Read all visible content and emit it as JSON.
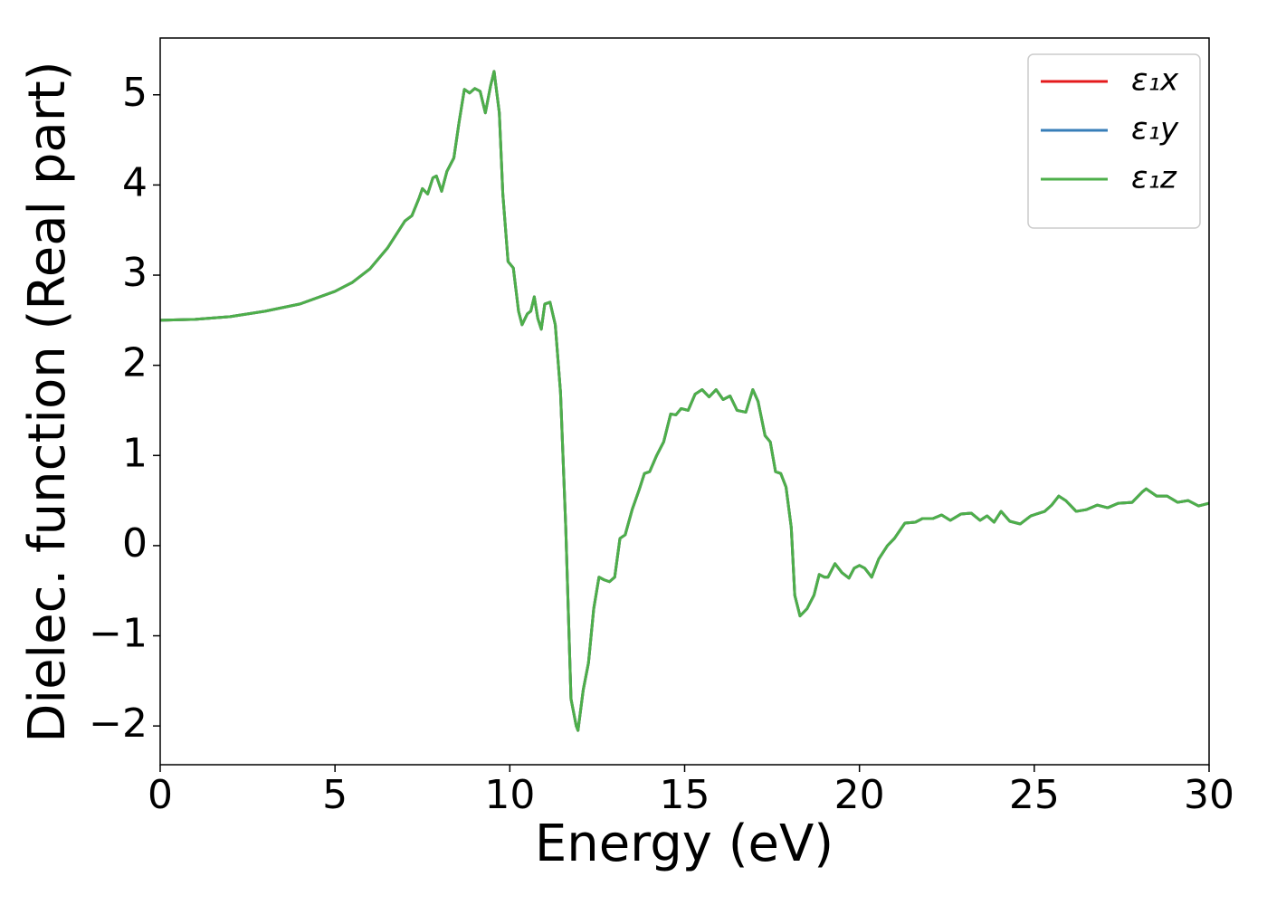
{
  "chart_data": {
    "type": "line",
    "xlabel": "Energy (eV)",
    "ylabel": "Dielec. function (Real part)",
    "x": [
      0,
      1,
      2,
      3,
      4,
      5,
      5.5,
      6,
      6.5,
      7,
      7.2,
      7.4,
      7.5,
      7.65,
      7.8,
      7.9,
      8.05,
      8.2,
      8.4,
      8.55,
      8.7,
      8.85,
      9.0,
      9.15,
      9.3,
      9.45,
      9.55,
      9.7,
      9.8,
      9.95,
      10.1,
      10.25,
      10.35,
      10.5,
      10.6,
      10.7,
      10.8,
      10.9,
      11.0,
      11.15,
      11.3,
      11.45,
      11.6,
      11.75,
      11.9,
      11.95,
      12.1,
      12.25,
      12.4,
      12.55,
      12.7,
      12.85,
      13.0,
      13.15,
      13.3,
      13.5,
      13.7,
      13.85,
      14.0,
      14.2,
      14.4,
      14.6,
      14.75,
      14.9,
      15.1,
      15.3,
      15.5,
      15.7,
      15.9,
      16.1,
      16.3,
      16.5,
      16.75,
      16.95,
      17.1,
      17.3,
      17.45,
      17.6,
      17.75,
      17.9,
      18.05,
      18.15,
      18.3,
      18.5,
      18.7,
      18.85,
      19.0,
      19.1,
      19.3,
      19.5,
      19.7,
      19.85,
      20.0,
      20.15,
      20.35,
      20.55,
      20.8,
      21.0,
      21.3,
      21.6,
      21.8,
      22.1,
      22.35,
      22.6,
      22.9,
      23.2,
      23.45,
      23.65,
      23.85,
      24.05,
      24.3,
      24.6,
      24.9,
      25.3,
      25.5,
      25.7,
      25.9,
      26.2,
      26.5,
      26.8,
      27.1,
      27.4,
      27.8,
      28.1,
      28.2,
      28.5,
      28.8,
      29.1,
      29.4,
      29.7,
      30.0
    ],
    "series": [
      {
        "name": "ε₁x",
        "color": "#e41a1c",
        "values": [
          2.5,
          2.51,
          2.54,
          2.6,
          2.68,
          2.82,
          2.92,
          3.07,
          3.3,
          3.6,
          3.66,
          3.85,
          3.96,
          3.9,
          4.08,
          4.1,
          3.93,
          4.15,
          4.3,
          4.7,
          5.06,
          5.02,
          5.07,
          5.04,
          4.8,
          5.1,
          5.26,
          4.8,
          3.9,
          3.15,
          3.08,
          2.6,
          2.45,
          2.57,
          2.6,
          2.76,
          2.52,
          2.4,
          2.68,
          2.7,
          2.45,
          1.7,
          0.2,
          -1.7,
          -2.0,
          -2.05,
          -1.6,
          -1.3,
          -0.7,
          -0.35,
          -0.38,
          -0.4,
          -0.35,
          0.08,
          0.12,
          0.4,
          0.62,
          0.8,
          0.82,
          1.0,
          1.15,
          1.46,
          1.45,
          1.52,
          1.5,
          1.68,
          1.73,
          1.65,
          1.73,
          1.62,
          1.66,
          1.5,
          1.48,
          1.73,
          1.6,
          1.22,
          1.15,
          0.82,
          0.8,
          0.65,
          0.2,
          -0.55,
          -0.78,
          -0.7,
          -0.55,
          -0.32,
          -0.35,
          -0.35,
          -0.2,
          -0.3,
          -0.36,
          -0.25,
          -0.22,
          -0.25,
          -0.35,
          -0.15,
          0.0,
          0.08,
          0.25,
          0.26,
          0.3,
          0.3,
          0.34,
          0.28,
          0.35,
          0.36,
          0.28,
          0.33,
          0.26,
          0.38,
          0.27,
          0.24,
          0.33,
          0.38,
          0.45,
          0.55,
          0.5,
          0.38,
          0.4,
          0.45,
          0.42,
          0.47,
          0.48,
          0.6,
          0.63,
          0.55,
          0.55,
          0.48,
          0.5,
          0.44,
          0.47
        ]
      },
      {
        "name": "ε₁y",
        "color": "#377eb8",
        "values": [
          2.5,
          2.51,
          2.54,
          2.6,
          2.68,
          2.82,
          2.92,
          3.07,
          3.3,
          3.6,
          3.66,
          3.85,
          3.96,
          3.9,
          4.08,
          4.1,
          3.93,
          4.15,
          4.3,
          4.7,
          5.06,
          5.02,
          5.07,
          5.04,
          4.8,
          5.1,
          5.26,
          4.8,
          3.9,
          3.15,
          3.08,
          2.6,
          2.45,
          2.57,
          2.6,
          2.76,
          2.52,
          2.4,
          2.68,
          2.7,
          2.45,
          1.7,
          0.2,
          -1.7,
          -2.0,
          -2.05,
          -1.6,
          -1.3,
          -0.7,
          -0.35,
          -0.38,
          -0.4,
          -0.35,
          0.08,
          0.12,
          0.4,
          0.62,
          0.8,
          0.82,
          1.0,
          1.15,
          1.46,
          1.45,
          1.52,
          1.5,
          1.68,
          1.73,
          1.65,
          1.73,
          1.62,
          1.66,
          1.5,
          1.48,
          1.73,
          1.6,
          1.22,
          1.15,
          0.82,
          0.8,
          0.65,
          0.2,
          -0.55,
          -0.78,
          -0.7,
          -0.55,
          -0.32,
          -0.35,
          -0.35,
          -0.2,
          -0.3,
          -0.36,
          -0.25,
          -0.22,
          -0.25,
          -0.35,
          -0.15,
          0.0,
          0.08,
          0.25,
          0.26,
          0.3,
          0.3,
          0.34,
          0.28,
          0.35,
          0.36,
          0.28,
          0.33,
          0.26,
          0.38,
          0.27,
          0.24,
          0.33,
          0.38,
          0.45,
          0.55,
          0.5,
          0.38,
          0.4,
          0.45,
          0.42,
          0.47,
          0.48,
          0.6,
          0.63,
          0.55,
          0.55,
          0.48,
          0.5,
          0.44,
          0.47
        ]
      },
      {
        "name": "ε₁z",
        "color": "#4daf4a",
        "values": [
          2.5,
          2.51,
          2.54,
          2.6,
          2.68,
          2.82,
          2.92,
          3.07,
          3.3,
          3.6,
          3.66,
          3.85,
          3.96,
          3.9,
          4.08,
          4.1,
          3.93,
          4.15,
          4.3,
          4.7,
          5.06,
          5.02,
          5.07,
          5.04,
          4.8,
          5.1,
          5.26,
          4.8,
          3.9,
          3.15,
          3.08,
          2.6,
          2.45,
          2.57,
          2.6,
          2.76,
          2.52,
          2.4,
          2.68,
          2.7,
          2.45,
          1.7,
          0.2,
          -1.7,
          -2.0,
          -2.05,
          -1.6,
          -1.3,
          -0.7,
          -0.35,
          -0.38,
          -0.4,
          -0.35,
          0.08,
          0.12,
          0.4,
          0.62,
          0.8,
          0.82,
          1.0,
          1.15,
          1.46,
          1.45,
          1.52,
          1.5,
          1.68,
          1.73,
          1.65,
          1.73,
          1.62,
          1.66,
          1.5,
          1.48,
          1.73,
          1.6,
          1.22,
          1.15,
          0.82,
          0.8,
          0.65,
          0.2,
          -0.55,
          -0.78,
          -0.7,
          -0.55,
          -0.32,
          -0.35,
          -0.35,
          -0.2,
          -0.3,
          -0.36,
          -0.25,
          -0.22,
          -0.25,
          -0.35,
          -0.15,
          0.0,
          0.08,
          0.25,
          0.26,
          0.3,
          0.3,
          0.34,
          0.28,
          0.35,
          0.36,
          0.28,
          0.33,
          0.26,
          0.38,
          0.27,
          0.24,
          0.33,
          0.38,
          0.45,
          0.55,
          0.5,
          0.38,
          0.4,
          0.45,
          0.42,
          0.47,
          0.48,
          0.6,
          0.63,
          0.55,
          0.55,
          0.48,
          0.5,
          0.44,
          0.47
        ]
      }
    ],
    "xlim": [
      0,
      30
    ],
    "xticks": [
      0,
      5,
      10,
      15,
      20,
      25,
      30
    ],
    "ylim": [
      -2.43,
      5.63
    ],
    "yticks": [
      {
        "value": -2,
        "label": "−2"
      },
      {
        "value": -1,
        "label": "−1"
      },
      0,
      1,
      2,
      3,
      4,
      5
    ],
    "grid": false,
    "legend": "upper right"
  }
}
